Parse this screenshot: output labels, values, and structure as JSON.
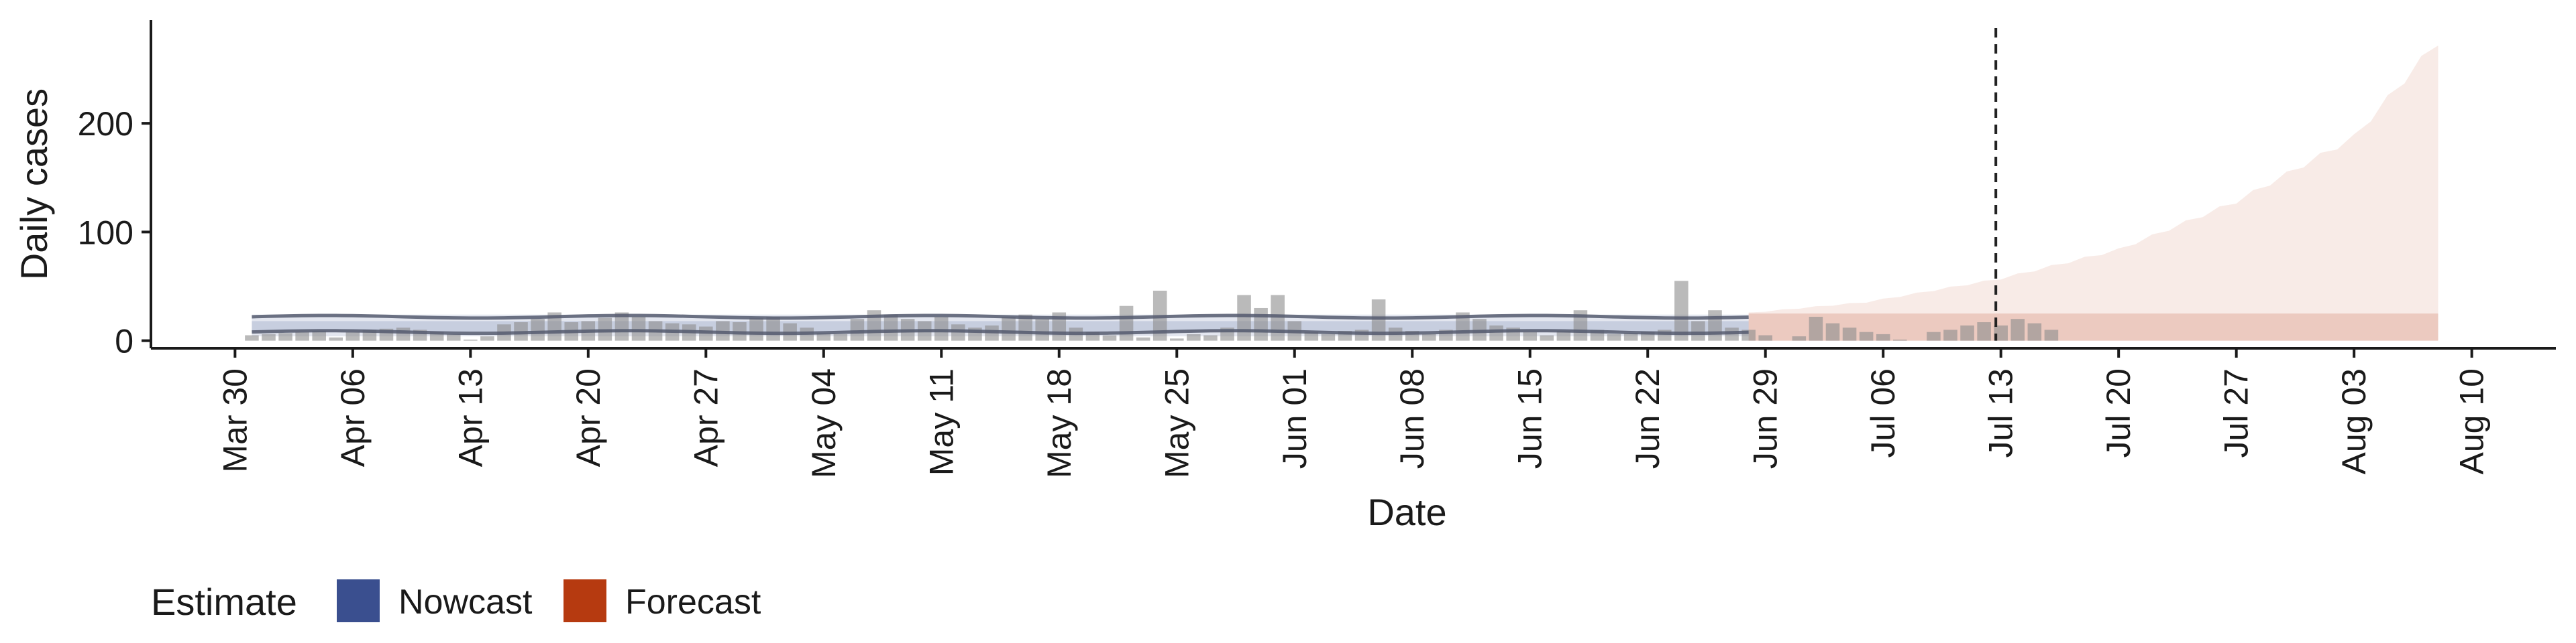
{
  "chart_data": {
    "type": "bar",
    "title": "",
    "xlabel": "Date",
    "ylabel": "Daily cases",
    "ylim": [
      -7,
      295
    ],
    "xlim": [
      "2020-03-25",
      "2020-08-15"
    ],
    "y_ticks": [
      0,
      100,
      200
    ],
    "x_ticks": [
      {
        "date": "2020-03-30",
        "label": "Mar 30"
      },
      {
        "date": "2020-04-06",
        "label": "Apr 06"
      },
      {
        "date": "2020-04-13",
        "label": "Apr 13"
      },
      {
        "date": "2020-04-20",
        "label": "Apr 20"
      },
      {
        "date": "2020-04-27",
        "label": "Apr 27"
      },
      {
        "date": "2020-05-04",
        "label": "May 04"
      },
      {
        "date": "2020-05-11",
        "label": "May 11"
      },
      {
        "date": "2020-05-18",
        "label": "May 18"
      },
      {
        "date": "2020-05-25",
        "label": "May 25"
      },
      {
        "date": "2020-06-01",
        "label": "Jun 01"
      },
      {
        "date": "2020-06-08",
        "label": "Jun 08"
      },
      {
        "date": "2020-06-15",
        "label": "Jun 15"
      },
      {
        "date": "2020-06-22",
        "label": "Jun 22"
      },
      {
        "date": "2020-06-29",
        "label": "Jun 29"
      },
      {
        "date": "2020-07-06",
        "label": "Jul 06"
      },
      {
        "date": "2020-07-13",
        "label": "Jul 13"
      },
      {
        "date": "2020-07-20",
        "label": "Jul 20"
      },
      {
        "date": "2020-07-27",
        "label": "Jul 27"
      },
      {
        "date": "2020-08-03",
        "label": "Aug 03"
      },
      {
        "date": "2020-08-10",
        "label": "Aug 10"
      }
    ],
    "vline_date": "2020-07-13",
    "bars": {
      "start_date": "2020-03-31",
      "values": [
        5,
        6,
        7,
        8,
        9,
        3,
        8,
        10,
        11,
        12,
        10,
        8,
        6,
        1,
        4,
        15,
        17,
        20,
        26,
        17,
        18,
        21,
        26,
        22,
        18,
        16,
        15,
        13,
        18,
        17,
        21,
        22,
        16,
        12,
        7,
        6,
        20,
        28,
        24,
        20,
        18,
        22,
        15,
        12,
        14,
        22,
        24,
        20,
        26,
        12,
        8,
        5,
        32,
        3,
        46,
        2,
        6,
        5,
        12,
        42,
        30,
        42,
        18,
        8,
        6,
        9,
        10,
        38,
        12,
        9,
        6,
        10,
        26,
        20,
        14,
        12,
        8,
        5,
        9,
        28,
        10,
        6,
        7,
        8,
        10,
        55,
        18,
        28,
        12,
        10,
        5,
        0,
        4,
        22,
        16,
        12,
        8,
        6,
        1,
        0,
        8,
        10,
        14,
        17,
        14,
        20,
        16,
        10
      ]
    },
    "series": [
      {
        "name": "Nowcast",
        "color": "#3a4f8f",
        "start_date": "2020-03-31",
        "end_date": "2020-06-28",
        "median": 12,
        "band_inner": [
          8,
          18
        ],
        "band_outer": [
          4,
          24
        ]
      },
      {
        "name": "Forecast",
        "color": "#b63a10",
        "start_date": "2020-06-28",
        "end_date": "2020-08-08",
        "band_inner_upper": 25,
        "band_outer_upper": [
          {
            "date": "2020-06-28",
            "value": 26
          },
          {
            "date": "2020-07-05",
            "value": 36
          },
          {
            "date": "2020-07-13",
            "value": 58
          },
          {
            "date": "2020-07-20",
            "value": 85
          },
          {
            "date": "2020-07-27",
            "value": 130
          },
          {
            "date": "2020-08-03",
            "value": 190
          },
          {
            "date": "2020-08-08",
            "value": 280
          }
        ]
      }
    ],
    "legend": {
      "title": "Estimate",
      "position": "bottom-left",
      "items": [
        {
          "label": "Nowcast",
          "color": "#3a4f8f"
        },
        {
          "label": "Forecast",
          "color": "#b63a10"
        }
      ]
    }
  }
}
